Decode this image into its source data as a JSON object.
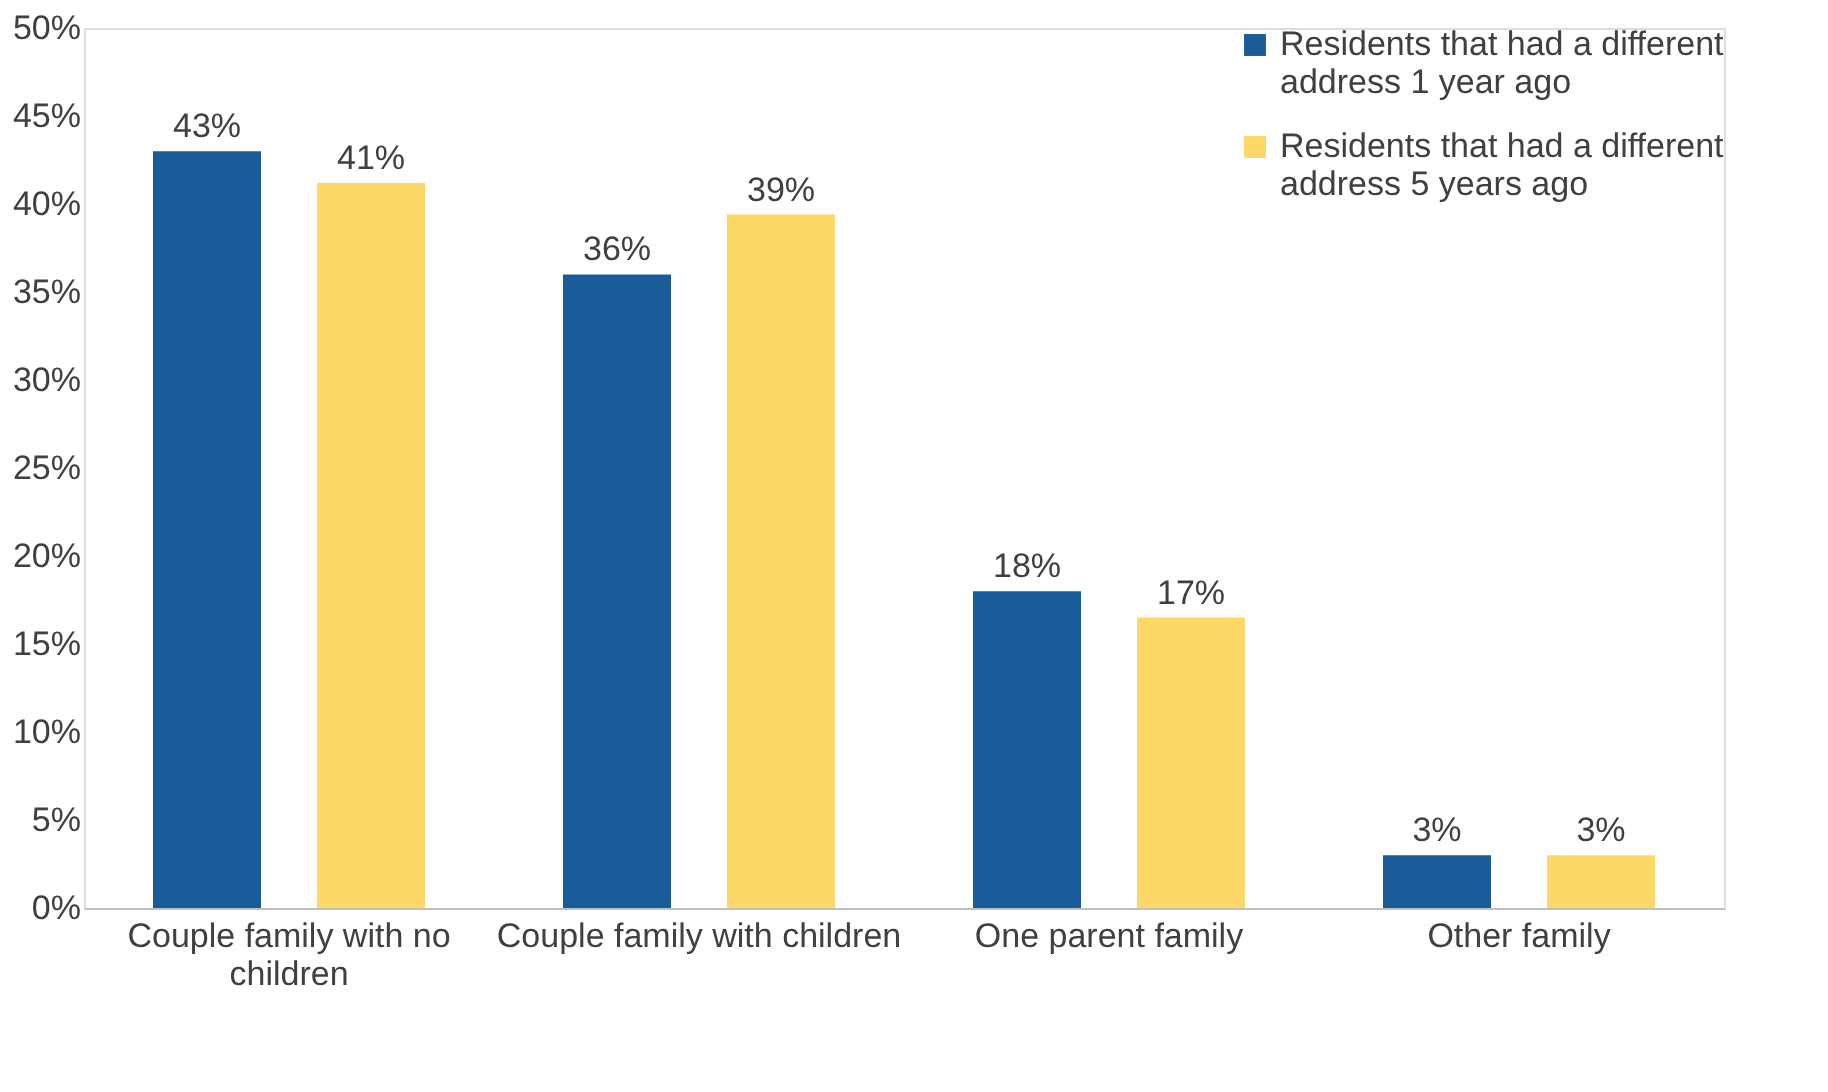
{
  "chart_data": {
    "type": "bar",
    "categories": [
      "Couple family with no children",
      "Couple family with children",
      "One parent family",
      "Other family"
    ],
    "series": [
      {
        "name": "Residents that had a different address 1 year ago",
        "color": "#1a5c9a",
        "values": [
          43,
          36,
          18,
          3
        ],
        "value_labels": [
          "43%",
          "36%",
          "18%",
          "3%"
        ]
      },
      {
        "name": "Residents that had a different address 5 years ago",
        "color": "#fdd868",
        "values": [
          41.2,
          39.4,
          16.5,
          3
        ],
        "value_labels": [
          "41%",
          "39%",
          "17%",
          "3%"
        ]
      }
    ],
    "ylim": [
      0,
      50
    ],
    "yticks": [
      {
        "value": 0,
        "label": "0%"
      },
      {
        "value": 5,
        "label": "5%"
      },
      {
        "value": 10,
        "label": "10%"
      },
      {
        "value": 15,
        "label": "15%"
      },
      {
        "value": 20,
        "label": "20%"
      },
      {
        "value": 25,
        "label": "25%"
      },
      {
        "value": 30,
        "label": "30%"
      },
      {
        "value": 35,
        "label": "35%"
      },
      {
        "value": 40,
        "label": "40%"
      },
      {
        "value": 45,
        "label": "45%"
      },
      {
        "value": 50,
        "label": "50%"
      }
    ],
    "grid": false,
    "legend": "top right"
  }
}
